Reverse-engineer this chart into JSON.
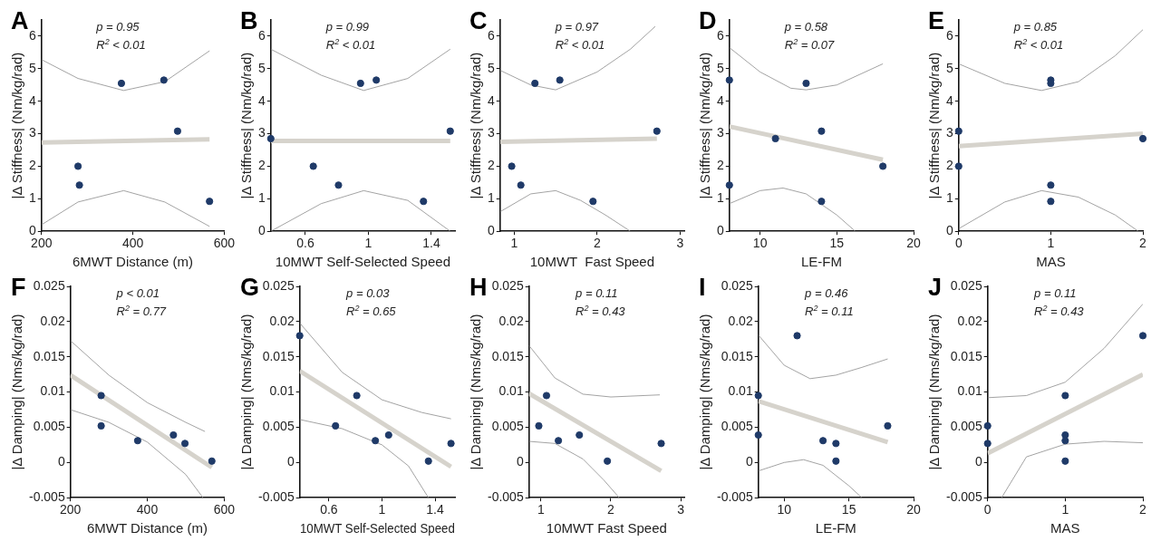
{
  "chart_data": [
    {
      "type": "scatter",
      "title": "A",
      "xlabel": "6MWT Distance (m)",
      "ylabel": "|Δ Stiffness| (Nm/kg/rad)",
      "annotations": [
        "p = 0.95",
        "R$^{2}$ < 0.01"
      ],
      "xlim": [
        200,
        600
      ],
      "xticks": [
        200,
        400,
        600
      ],
      "ylim": [
        0,
        6.5
      ],
      "yticks": [
        0,
        1,
        2,
        3,
        4,
        5,
        6
      ],
      "line_style": "solid",
      "series": [
        {
          "type": "line",
          "color": "#d6d3cc",
          "x": [
            200,
            568
          ],
          "values": [
            2.73,
            2.83
          ]
        },
        {
          "type": "line",
          "color": "#8c8c8c",
          "x": [
            200,
            280,
            380,
            470,
            568
          ],
          "values": [
            5.28,
            4.7,
            4.33,
            4.6,
            5.55
          ]
        },
        {
          "type": "line",
          "color": "#8c8c8c",
          "x": [
            200,
            280,
            380,
            470,
            568
          ],
          "values": [
            0.2,
            0.9,
            1.25,
            0.9,
            0.15
          ]
        },
        {
          "marker": "circle",
          "color": "#1f3a68",
          "x": [
            280,
            283,
            375,
            468,
            498,
            568
          ],
          "values": [
            2.0,
            1.42,
            4.55,
            4.65,
            3.08,
            0.92
          ]
        }
      ]
    },
    {
      "type": "scatter",
      "title": "B",
      "xlabel": "10MWT Self-Selected Speed",
      "ylabel": "|Δ Stiffness| (Nm/kg/rad)",
      "annotations": [
        "p = 0.99",
        "R$^{2}$ < 0.01"
      ],
      "xlim": [
        0.38,
        1.55
      ],
      "xticks": [
        0.6,
        1,
        1.4
      ],
      "ylim": [
        0,
        6.5
      ],
      "yticks": [
        0,
        1,
        2,
        3,
        4,
        5,
        6
      ],
      "line_style": "solid",
      "series": [
        {
          "type": "line",
          "color": "#d6d3cc",
          "x": [
            0.38,
            1.52
          ],
          "values": [
            2.78,
            2.78
          ]
        },
        {
          "type": "line",
          "color": "#8c8c8c",
          "x": [
            0.38,
            0.7,
            0.97,
            1.25,
            1.52
          ],
          "values": [
            5.6,
            4.8,
            4.33,
            4.7,
            5.6
          ]
        },
        {
          "type": "line",
          "color": "#8c8c8c",
          "x": [
            0.38,
            0.7,
            0.97,
            1.25,
            1.52
          ],
          "values": [
            0.0,
            0.85,
            1.25,
            0.95,
            0.0
          ]
        },
        {
          "marker": "circle",
          "color": "#1f3a68",
          "x": [
            0.38,
            0.65,
            0.81,
            0.95,
            1.05,
            1.35,
            1.52
          ],
          "values": [
            2.85,
            2.0,
            1.42,
            4.55,
            4.65,
            0.92,
            3.08
          ]
        }
      ]
    },
    {
      "type": "scatter",
      "title": "C",
      "xlabel": "10MWT  Fast Speed",
      "ylabel": "|Δ Stiffness| (Nm/kg/rad)",
      "annotations": [
        "p = 0.97",
        "R$^{2}$ < 0.01"
      ],
      "xlim": [
        0.83,
        3.05
      ],
      "xticks": [
        1,
        2,
        3
      ],
      "ylim": [
        0,
        6.5
      ],
      "yticks": [
        0,
        1,
        2,
        3,
        4,
        5,
        6
      ],
      "line_style": "solid",
      "series": [
        {
          "type": "line",
          "color": "#d6d3cc",
          "x": [
            0.83,
            2.72
          ],
          "values": [
            2.75,
            2.85
          ]
        },
        {
          "type": "line",
          "color": "#8c8c8c",
          "x": [
            0.83,
            1.2,
            1.5,
            2.0,
            2.4,
            2.7
          ],
          "values": [
            4.95,
            4.5,
            4.35,
            4.9,
            5.6,
            6.3
          ]
        },
        {
          "type": "line",
          "color": "#8c8c8c",
          "x": [
            0.83,
            1.2,
            1.5,
            1.8,
            2.1,
            2.4
          ],
          "values": [
            0.6,
            1.15,
            1.25,
            0.95,
            0.5,
            0.0
          ]
        },
        {
          "marker": "circle",
          "color": "#1f3a68",
          "x": [
            0.97,
            1.08,
            1.25,
            1.55,
            1.95,
            2.72
          ],
          "values": [
            2.0,
            1.42,
            4.55,
            4.65,
            0.92,
            3.08
          ]
        }
      ]
    },
    {
      "type": "scatter",
      "title": "D",
      "xlabel": "LE-FM",
      "ylabel": "|Δ Stiffness| (Nm/kg/rad)",
      "annotations": [
        "p = 0.58",
        "R$^{2}$ = 0.07"
      ],
      "xlim": [
        8,
        20
      ],
      "xticks": [
        10,
        15,
        20
      ],
      "ylim": [
        0,
        6.5
      ],
      "yticks": [
        0,
        1,
        2,
        3,
        4,
        5,
        6
      ],
      "line_style": "solid",
      "series": [
        {
          "type": "line",
          "color": "#d6d3cc",
          "x": [
            8,
            18
          ],
          "values": [
            3.22,
            2.2
          ]
        },
        {
          "type": "line",
          "color": "#8c8c8c",
          "x": [
            8,
            10,
            12,
            13,
            15,
            18
          ],
          "values": [
            5.65,
            4.9,
            4.4,
            4.35,
            4.5,
            5.15
          ]
        },
        {
          "type": "line",
          "color": "#8c8c8c",
          "x": [
            8,
            10,
            11.5,
            13,
            15,
            16.2
          ],
          "values": [
            0.85,
            1.25,
            1.33,
            1.15,
            0.5,
            0.0
          ]
        },
        {
          "marker": "circle",
          "color": "#1f3a68",
          "x": [
            8,
            8,
            11,
            13,
            14,
            14,
            18
          ],
          "values": [
            4.65,
            1.42,
            2.85,
            4.55,
            3.08,
            0.92,
            2.0
          ]
        }
      ]
    },
    {
      "type": "scatter",
      "title": "E",
      "xlabel": "MAS",
      "ylabel": "|Δ Stiffness| (Nm/kg/rad)",
      "annotations": [
        "p = 0.85",
        "R$^{2}$ < 0.01"
      ],
      "xlim": [
        0,
        2
      ],
      "xticks": [
        0,
        1,
        2
      ],
      "ylim": [
        0,
        6.5
      ],
      "yticks": [
        0,
        1,
        2,
        3,
        4,
        5,
        6
      ],
      "line_style": "solid",
      "series": [
        {
          "type": "line",
          "color": "#d6d3cc",
          "x": [
            0,
            2
          ],
          "values": [
            2.62,
            3.0
          ]
        },
        {
          "type": "line",
          "color": "#8c8c8c",
          "x": [
            0,
            0.5,
            0.9,
            1.3,
            1.7,
            2
          ],
          "values": [
            5.15,
            4.55,
            4.33,
            4.6,
            5.4,
            6.2
          ]
        },
        {
          "type": "line",
          "color": "#8c8c8c",
          "x": [
            0,
            0.5,
            0.9,
            1.3,
            1.7,
            1.95
          ],
          "values": [
            0.08,
            0.9,
            1.25,
            1.05,
            0.5,
            0.0
          ]
        },
        {
          "marker": "circle",
          "color": "#1f3a68",
          "x": [
            0,
            0,
            1,
            1,
            1,
            1,
            2
          ],
          "values": [
            3.08,
            2.0,
            4.65,
            4.55,
            1.42,
            0.92,
            2.85
          ]
        }
      ]
    },
    {
      "type": "scatter",
      "title": "F",
      "xlabel": "6MWT Distance (m)",
      "ylabel": "|Δ Damping| (Nms/kg/rad)",
      "annotations": [
        "p < 0.01",
        "R$^{2}$ = 0.77"
      ],
      "xlim": [
        200,
        600
      ],
      "xticks": [
        200,
        400,
        600
      ],
      "ylim": [
        -0.005,
        0.025
      ],
      "yticks": [
        -0.005,
        0,
        0.005,
        0.01,
        0.015,
        0.02,
        0.025
      ],
      "line_style": "solid",
      "series": [
        {
          "type": "line",
          "color": "#d6d3cc",
          "x": [
            200,
            568
          ],
          "values": [
            0.0124,
            -0.0007
          ]
        },
        {
          "type": "line",
          "color": "#8c8c8c",
          "x": [
            200,
            300,
            400,
            500,
            550
          ],
          "values": [
            0.0173,
            0.0124,
            0.0085,
            0.0057,
            0.0044
          ]
        },
        {
          "type": "line",
          "color": "#8c8c8c",
          "x": [
            200,
            300,
            400,
            500,
            545
          ],
          "values": [
            0.0075,
            0.0057,
            0.0029,
            -0.0017,
            -0.005
          ]
        },
        {
          "marker": "circle",
          "color": "#1f3a68",
          "x": [
            280,
            280,
            375,
            468,
            498,
            568
          ],
          "values": [
            0.0095,
            0.0052,
            0.0031,
            0.0039,
            0.0027,
            0.0002
          ]
        }
      ]
    },
    {
      "type": "scatter",
      "title": "G",
      "xlabel": "10MWT Self-Selected Speed",
      "ylabel": "|Δ Damping| (Nms/kg/rad)",
      "annotations": [
        "p = 0.03",
        "R$^{2}$ = 0.65"
      ],
      "xlim": [
        0.38,
        1.55
      ],
      "xticks": [
        0.6,
        1,
        1.4
      ],
      "ylim": [
        -0.005,
        0.025
      ],
      "yticks": [
        -0.005,
        0,
        0.005,
        0.01,
        0.015,
        0.02,
        0.025
      ],
      "line_style": "solid",
      "series": [
        {
          "type": "line",
          "color": "#d6d3cc",
          "x": [
            0.38,
            1.52
          ],
          "values": [
            0.013,
            -0.0006
          ]
        },
        {
          "type": "line",
          "color": "#8c8c8c",
          "x": [
            0.38,
            0.7,
            1.0,
            1.3,
            1.52
          ],
          "values": [
            0.0198,
            0.0128,
            0.0089,
            0.0071,
            0.0062
          ]
        },
        {
          "type": "line",
          "color": "#8c8c8c",
          "x": [
            0.38,
            0.7,
            1.0,
            1.2,
            1.35
          ],
          "values": [
            0.0061,
            0.0048,
            0.0025,
            -0.0005,
            -0.005
          ]
        },
        {
          "marker": "circle",
          "color": "#1f3a68",
          "x": [
            0.38,
            0.65,
            0.81,
            0.95,
            1.05,
            1.35,
            1.52
          ],
          "values": [
            0.018,
            0.0052,
            0.0095,
            0.0031,
            0.0039,
            0.0002,
            0.0027
          ]
        }
      ]
    },
    {
      "type": "scatter",
      "title": "H",
      "xlabel": "10MWT Fast Speed",
      "ylabel": "|Δ Damping| (Nms/kg/rad)",
      "annotations": [
        "p = 0.11",
        "R$^{2}$ = 0.43"
      ],
      "xlim": [
        0.83,
        3.05
      ],
      "xticks": [
        1,
        2,
        3
      ],
      "ylim": [
        -0.005,
        0.025
      ],
      "yticks": [
        -0.005,
        0,
        0.005,
        0.01,
        0.015,
        0.02,
        0.025
      ],
      "line_style": "solid",
      "series": [
        {
          "type": "line",
          "color": "#d6d3cc",
          "x": [
            0.83,
            2.72
          ],
          "values": [
            0.0098,
            -0.0012
          ]
        },
        {
          "type": "line",
          "color": "#8c8c8c",
          "x": [
            0.83,
            1.2,
            1.6,
            2.0,
            2.7
          ],
          "values": [
            0.0166,
            0.012,
            0.0097,
            0.0093,
            0.0096
          ]
        },
        {
          "type": "line",
          "color": "#8c8c8c",
          "x": [
            0.83,
            1.2,
            1.6,
            1.9,
            2.12
          ],
          "values": [
            0.003,
            0.0027,
            0.0005,
            -0.0025,
            -0.005
          ]
        },
        {
          "marker": "circle",
          "color": "#1f3a68",
          "x": [
            0.97,
            1.08,
            1.25,
            1.55,
            1.95,
            2.72
          ],
          "values": [
            0.0052,
            0.0095,
            0.0031,
            0.0039,
            0.0002,
            0.0027
          ]
        }
      ]
    },
    {
      "type": "scatter",
      "title": "I",
      "xlabel": "LE-FM",
      "ylabel": "|Δ Damping| (Nms/kg/rad)",
      "annotations": [
        "p = 0.46",
        "R$^{2}$ = 0.11"
      ],
      "xlim": [
        8,
        20
      ],
      "xticks": [
        10,
        15,
        20
      ],
      "ylim": [
        -0.005,
        0.025
      ],
      "yticks": [
        -0.005,
        0,
        0.005,
        0.01,
        0.015,
        0.02,
        0.025
      ],
      "line_style": "solid",
      "series": [
        {
          "type": "line",
          "color": "#d6d3cc",
          "x": [
            8,
            18
          ],
          "values": [
            0.0087,
            0.0029
          ]
        },
        {
          "type": "line",
          "color": "#8c8c8c",
          "x": [
            8,
            10,
            12,
            14,
            16,
            18
          ],
          "values": [
            0.0181,
            0.0138,
            0.0119,
            0.0124,
            0.0135,
            0.0147
          ]
        },
        {
          "type": "line",
          "color": "#8c8c8c",
          "x": [
            8,
            10,
            11.5,
            13,
            15,
            16
          ],
          "values": [
            -0.0012,
            0.0,
            0.0004,
            -0.0004,
            -0.0033,
            -0.005
          ]
        },
        {
          "marker": "circle",
          "color": "#1f3a68",
          "x": [
            8,
            8,
            11,
            13,
            14,
            14,
            18
          ],
          "values": [
            0.0095,
            0.0039,
            0.018,
            0.0031,
            0.0027,
            0.0002,
            0.0052
          ]
        }
      ]
    },
    {
      "type": "scatter",
      "title": "J",
      "xlabel": "MAS",
      "ylabel": "|Δ Damping| (Nms/kg/rad)",
      "annotations": [
        "p = 0.11",
        "R$^{2}$ = 0.43"
      ],
      "xlim": [
        0,
        2
      ],
      "xticks": [
        0,
        1,
        2
      ],
      "ylim": [
        -0.005,
        0.025
      ],
      "yticks": [
        -0.005,
        0,
        0.005,
        0.01,
        0.015,
        0.02,
        0.025
      ],
      "line_style": "solid",
      "series": [
        {
          "type": "line",
          "color": "#d6d3cc",
          "x": [
            0,
            2
          ],
          "values": [
            0.0013,
            0.0125
          ]
        },
        {
          "type": "line",
          "color": "#8c8c8c",
          "x": [
            0,
            0.5,
            1,
            1.5,
            2
          ],
          "values": [
            0.0092,
            0.0095,
            0.0114,
            0.0162,
            0.0225
          ]
        },
        {
          "type": "line",
          "color": "#8c8c8c",
          "x": [
            0.18,
            0.5,
            1,
            1.5,
            2
          ],
          "values": [
            -0.005,
            0.0008,
            0.0026,
            0.003,
            0.0028
          ]
        },
        {
          "marker": "circle",
          "color": "#1f3a68",
          "x": [
            0,
            0,
            1,
            1,
            1,
            1,
            2
          ],
          "values": [
            0.0052,
            0.0027,
            0.0095,
            0.0039,
            0.0031,
            0.0002,
            0.018
          ]
        }
      ]
    }
  ]
}
